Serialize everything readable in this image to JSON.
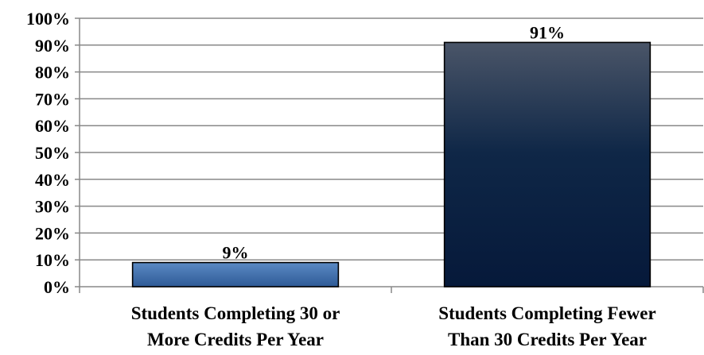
{
  "chart_data": {
    "type": "bar",
    "categories": [
      [
        "Students Completing 30 or",
        "More Credits Per Year"
      ],
      [
        "Students Completing Fewer",
        "Than 30 Credits Per Year"
      ]
    ],
    "values": [
      9,
      91
    ],
    "data_labels": [
      "9%",
      "91%"
    ],
    "ylim": [
      0,
      100
    ],
    "yticks": [
      "0%",
      "10%",
      "20%",
      "30%",
      "40%",
      "50%",
      "60%",
      "70%",
      "80%",
      "90%",
      "100%"
    ],
    "grid": true,
    "legend": "none",
    "colors": {
      "bar1_top": "#5b8ac4",
      "bar1_bottom": "#2e5a96",
      "bar2_top": "#4a5568",
      "bar2_bottom": "#0f2747",
      "bar2_base": "#06193a",
      "grid": "#888888"
    }
  }
}
